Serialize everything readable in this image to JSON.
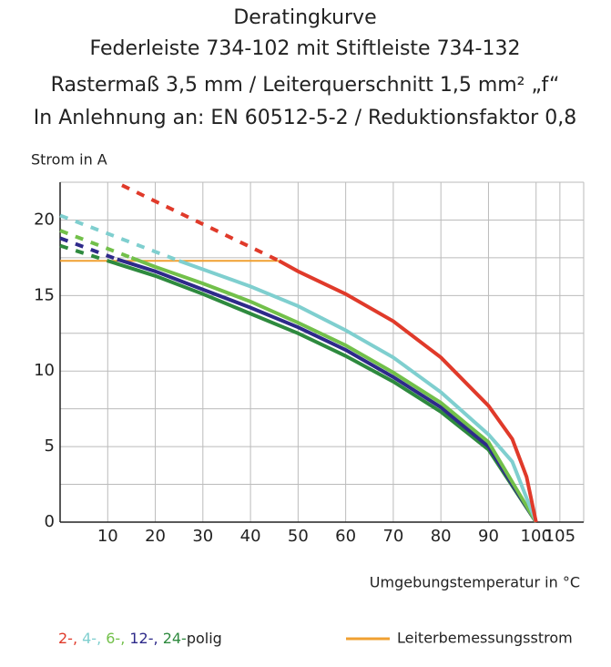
{
  "chart_data": {
    "type": "line",
    "title": [
      "Deratingkurve",
      "Federleiste 734-102 mit Stiftleiste 734-132",
      "Rastermaß 3,5 mm / Leiterquerschnitt 1,5 mm² „f“",
      "In Anlehnung an: EN 60512-5-2 / Reduktionsfaktor 0,8"
    ],
    "y_label": "Strom in A",
    "x_label": "Umgebungstemperatur in °C",
    "xlim": [
      0,
      110
    ],
    "ylim": [
      0,
      22.5
    ],
    "xticks": [
      10,
      20,
      30,
      40,
      50,
      60,
      70,
      80,
      90,
      100,
      105
    ],
    "yticks": [
      0,
      5,
      10,
      15,
      20
    ],
    "y_minor_grid": [
      2.5,
      7.5,
      12.5,
      17.5,
      22.5
    ],
    "grid": true,
    "legend_separator": ", ",
    "legend_suffix": "polig",
    "series": [
      {
        "name": "2-",
        "color": "#e03a2a",
        "dashed": {
          "x": [
            13,
            46
          ],
          "values": [
            22.3,
            17.3
          ]
        },
        "x": [
          46,
          50,
          60,
          70,
          80,
          90,
          95,
          98,
          100
        ],
        "values": [
          17.3,
          16.6,
          15.1,
          13.3,
          10.9,
          7.7,
          5.5,
          3,
          0
        ]
      },
      {
        "name": "4-",
        "color": "#7fcfcf",
        "dashed": {
          "x": [
            0,
            25
          ],
          "values": [
            20.3,
            17.3
          ]
        },
        "x": [
          25,
          40,
          50,
          60,
          70,
          80,
          90,
          95,
          100
        ],
        "values": [
          17.3,
          15.6,
          14.3,
          12.7,
          10.9,
          8.6,
          5.8,
          4,
          0
        ]
      },
      {
        "name": "6-",
        "color": "#72c04a",
        "dashed": {
          "x": [
            0,
            15
          ],
          "values": [
            19.3,
            17.5
          ]
        },
        "x": [
          15,
          20,
          30,
          40,
          50,
          60,
          70,
          80,
          90,
          100
        ],
        "values": [
          17.5,
          16.9,
          15.8,
          14.6,
          13.2,
          11.7,
          9.9,
          7.9,
          5.3,
          0
        ]
      },
      {
        "name": "12-",
        "color": "#2e2a8a",
        "dashed": {
          "x": [
            0,
            12
          ],
          "values": [
            18.8,
            17.4
          ]
        },
        "x": [
          12,
          20,
          30,
          40,
          50,
          60,
          70,
          80,
          90,
          100
        ],
        "values": [
          17.4,
          16.6,
          15.4,
          14.2,
          12.9,
          11.4,
          9.6,
          7.6,
          5.0,
          0
        ]
      },
      {
        "name": "24-",
        "color": "#2e8a3e",
        "dashed": {
          "x": [
            0,
            10
          ],
          "values": [
            18.3,
            17.3
          ]
        },
        "x": [
          10,
          20,
          30,
          40,
          50,
          60,
          70,
          80,
          90,
          100
        ],
        "values": [
          17.3,
          16.3,
          15.1,
          13.8,
          12.5,
          11.0,
          9.3,
          7.3,
          4.8,
          0
        ]
      }
    ],
    "reference": {
      "name": "Leiterbemessungsstrom",
      "color": "#f0a030",
      "x": [
        0,
        46
      ],
      "values": [
        17.3,
        17.3
      ]
    }
  }
}
